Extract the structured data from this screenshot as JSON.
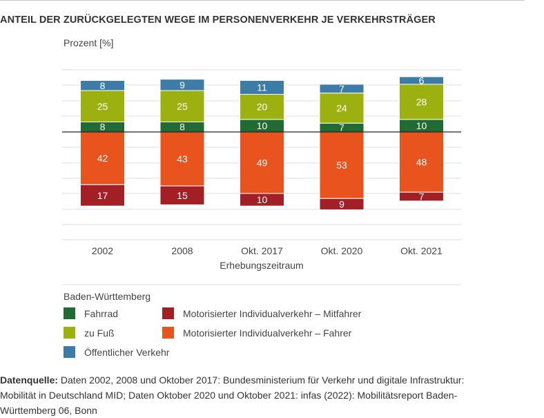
{
  "title": "ANTEIL DER ZURÜCKGELEGTEN WEGE IM PERSONENVERKEHR JE VERKEHRSTRÄGER",
  "colors": {
    "Fahrrad": "#1f6b33",
    "zu Fuß": "#9cb10f",
    "Öffentlicher Verkehr": "#3e7ca8",
    "Motorisierter Individualverkehr – Mitfahrer": "#a21f25",
    "Motorisierter Individualverkehr – Fahrer": "#e9531e",
    "grid": "#dddddd",
    "baseline": "#222222",
    "text": "#444444"
  },
  "chart_data": {
    "type": "bar",
    "stacking": "diverging",
    "title": "ANTEIL DER ZURÜCKGELEGTEN WEGE IM PERSONENVERKEHR JE VERKEHRSTRÄGER",
    "ylabel": "Prozent [%]",
    "xlabel": "Erhebungszeitraum",
    "categories": [
      "2002",
      "2008",
      "Okt. 2017",
      "Okt. 2020",
      "Okt. 2021"
    ],
    "series": [
      {
        "name": "Fahrrad",
        "direction": "up",
        "values": [
          8,
          8,
          10,
          7,
          10
        ]
      },
      {
        "name": "zu Fuß",
        "direction": "up",
        "values": [
          25,
          25,
          20,
          24,
          28
        ]
      },
      {
        "name": "Öffentlicher Verkehr",
        "direction": "up",
        "values": [
          8,
          9,
          11,
          7,
          6
        ]
      },
      {
        "name": "Motorisierter Individualverkehr – Fahrer",
        "direction": "down",
        "values": [
          42,
          43,
          49,
          53,
          48
        ]
      },
      {
        "name": "Motorisierter Individualverkehr – Mitfahrer",
        "direction": "down",
        "values": [
          17,
          15,
          10,
          9,
          7
        ]
      }
    ],
    "grid": true,
    "legend_position": "bottom"
  },
  "legend": {
    "title": "Baden-Württemberg",
    "items": [
      "Fahrrad",
      "Motorisierter Individualverkehr – Mitfahrer",
      "zu Fuß",
      "Motorisierter Individualverkehr – Fahrer",
      "Öffentlicher Verkehr"
    ]
  },
  "source": {
    "label": "Datenquelle:",
    "text": " Daten 2002, 2008 und Oktober 2017: Bundesministerium für Verkehr und digitale Infrastruktur: Mobilität in Deutschland MID; Daten Oktober 2020 und Oktober 2021: infas (2022): Mobilitätsreport Baden-Württemberg 06, Bonn"
  }
}
